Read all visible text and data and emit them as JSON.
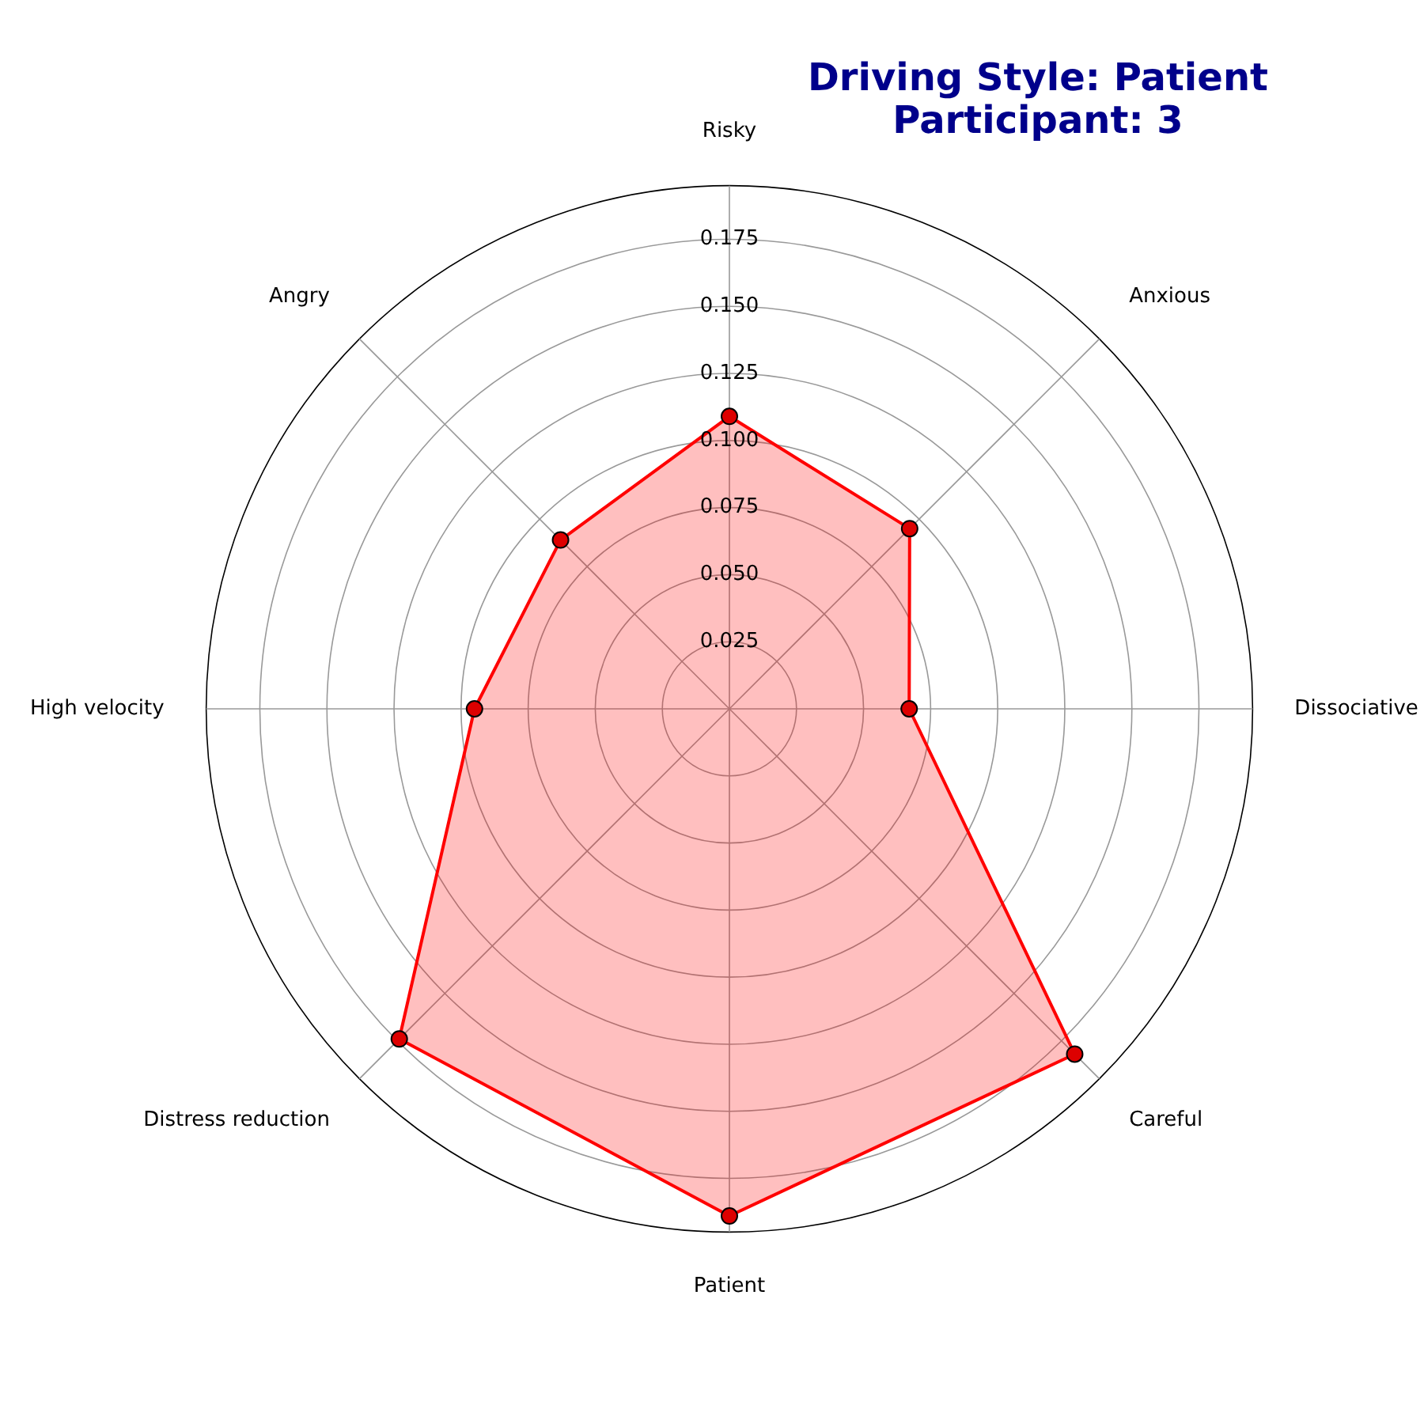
{
  "chart_data": {
    "type": "radar",
    "title": "Driving Style: Patient\nParticipant: 3",
    "categories": [
      "Risky",
      "Anxious",
      "Dissociative",
      "Careful",
      "Patient",
      "Distress reduction",
      "High velocity",
      "Angry"
    ],
    "series": [
      {
        "color": "#ff0000",
        "values": [
          0.109,
          0.095,
          0.067,
          0.182,
          0.189,
          0.174,
          0.095,
          0.089
        ]
      }
    ],
    "ylim": [
      0,
      0.195
    ],
    "yticks": [
      0.025,
      {
        "value": 0.05,
        "label": "0.050"
      },
      0.075,
      {
        "value": 0.1,
        "label": "0.100"
      },
      0.125,
      {
        "value": 0.15,
        "label": "0.150"
      },
      0.175
    ],
    "grid": true,
    "marker": "circle",
    "legend": false
  }
}
